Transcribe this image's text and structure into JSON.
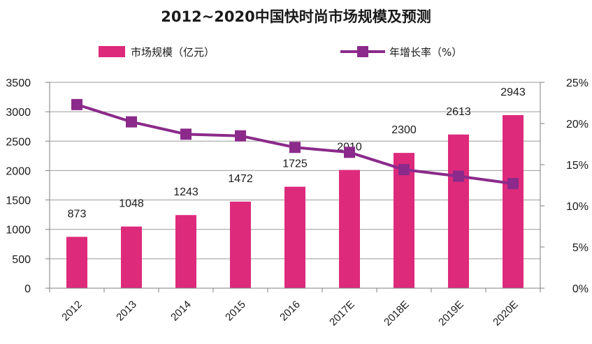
{
  "chart_data": {
    "type": "bar",
    "title": "2012~2020中国快时尚市场规模及预测",
    "categories": [
      "2012",
      "2013",
      "2014",
      "2015",
      "2016",
      "2017E",
      "2018E",
      "2019E",
      "2020E"
    ],
    "series": [
      {
        "name": "市场规模（亿元）",
        "type": "bar",
        "axis": "left",
        "color": "#DD2A7B",
        "values": [
          873,
          1048,
          1243,
          1472,
          1725,
          2010,
          2300,
          2613,
          2943
        ]
      },
      {
        "name": "年增长率（%）",
        "type": "line",
        "axis": "right",
        "color": "#8B2A8B",
        "values": [
          22.3,
          20.2,
          18.7,
          18.5,
          17.1,
          16.5,
          14.4,
          13.6,
          12.7
        ]
      }
    ],
    "y_left": {
      "min": 0,
      "max": 3500,
      "ticks": [
        "0",
        "500",
        "1000",
        "1500",
        "2000",
        "2500",
        "3000",
        "3500"
      ]
    },
    "y_right": {
      "min": 0,
      "max": 25,
      "ticks": [
        "0%",
        "5%",
        "10%",
        "15%",
        "20%",
        "25%"
      ]
    },
    "data_labels": [
      "873",
      "1048",
      "1243",
      "1472",
      "1725",
      "2010",
      "2300",
      "2613",
      "2943"
    ],
    "grid": "horizontal",
    "legend_position": "top"
  }
}
